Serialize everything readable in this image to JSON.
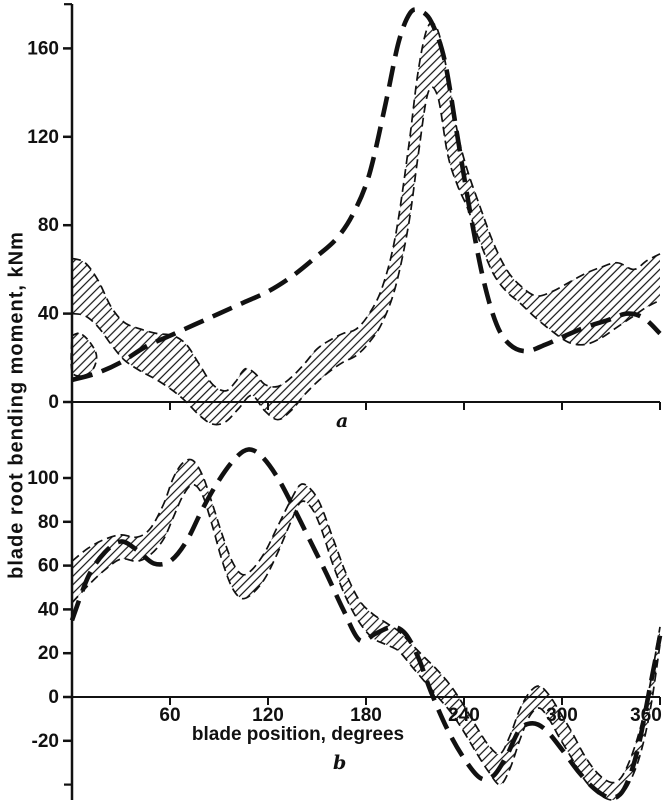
{
  "figure": {
    "background": "#ffffff",
    "ink": "#111111"
  },
  "chart_data": [
    {
      "id": "a",
      "type": "line",
      "panel_label": "a",
      "ylabel": "blade root bending moment, kNm",
      "xlim": [
        0,
        360
      ],
      "ylim": [
        -15,
        185
      ],
      "yticks": [
        0,
        40,
        80,
        120,
        160
      ],
      "yticks_minor": [
        180
      ],
      "xticks": [
        60,
        120,
        180,
        240,
        300,
        360
      ],
      "show_xtick_labels": false,
      "grid": false,
      "band": {
        "upper": "measured-envelope-upper",
        "lower": "measured-envelope-lower",
        "fill": "hatch"
      },
      "series": [
        {
          "name": "predicted-thick-dashed",
          "style": "thick-dashed",
          "x": [
            0,
            15,
            30,
            45,
            60,
            75,
            90,
            105,
            120,
            135,
            150,
            162,
            172,
            182,
            192,
            200,
            207,
            213,
            220,
            228,
            236,
            244,
            252,
            260,
            268,
            278,
            290,
            302,
            315,
            328,
            340,
            350,
            360
          ],
          "y": [
            10,
            13,
            18,
            25,
            30,
            35,
            40,
            45,
            50,
            57,
            66,
            74,
            85,
            103,
            135,
            163,
            176,
            177,
            172,
            155,
            120,
            85,
            55,
            35,
            26,
            23,
            26,
            30,
            34,
            37,
            40,
            38,
            31
          ]
        },
        {
          "name": "measured-envelope-upper",
          "style": "thin-dashed",
          "x": [
            0,
            8,
            16,
            24,
            32,
            42,
            52,
            62,
            70,
            78,
            86,
            94,
            100,
            106,
            112,
            118,
            126,
            134,
            142,
            150,
            158,
            166,
            174,
            182,
            190,
            198,
            206,
            212,
            218,
            224,
            230,
            236,
            242,
            250,
            258,
            266,
            274,
            284,
            294,
            304,
            314,
            324,
            334,
            344,
            352,
            360
          ],
          "y": [
            65,
            63,
            55,
            43,
            36,
            33,
            31,
            30,
            26,
            17,
            8,
            5,
            9,
            15,
            13,
            8,
            7,
            11,
            17,
            24,
            28,
            31,
            33,
            40,
            52,
            75,
            115,
            150,
            170,
            168,
            148,
            122,
            105,
            88,
            72,
            60,
            53,
            48,
            50,
            54,
            58,
            61,
            63,
            60,
            64,
            67
          ]
        },
        {
          "name": "measured-envelope-lower",
          "style": "thin-dashed",
          "x": [
            0,
            8,
            16,
            24,
            32,
            42,
            52,
            62,
            70,
            78,
            86,
            94,
            102,
            110,
            118,
            126,
            134,
            142,
            150,
            158,
            166,
            174,
            182,
            190,
            198,
            206,
            212,
            218,
            224,
            230,
            236,
            242,
            250,
            258,
            266,
            274,
            284,
            294,
            304,
            314,
            324,
            334,
            344,
            352,
            360
          ],
          "y": [
            40,
            39,
            34,
            26,
            19,
            14,
            10,
            5,
            0,
            -6,
            -10,
            -9,
            -3,
            3,
            -4,
            -8,
            -4,
            3,
            9,
            14,
            18,
            21,
            27,
            36,
            52,
            80,
            112,
            140,
            138,
            112,
            98,
            88,
            72,
            58,
            50,
            45,
            38,
            32,
            27,
            26,
            29,
            34,
            39,
            43,
            46
          ]
        }
      ],
      "extra_regions": [
        {
          "name": "small-left-lobe",
          "x": [
            0,
            5,
            11,
            15,
            13,
            7,
            0
          ],
          "y": [
            30,
            31,
            27,
            21,
            15,
            12,
            14
          ]
        }
      ]
    },
    {
      "id": "b",
      "type": "line",
      "panel_label": "b",
      "xlabel": "blade position, degrees",
      "xlim": [
        0,
        360
      ],
      "ylim": [
        -50,
        115
      ],
      "yticks": [
        -20,
        0,
        20,
        40,
        60,
        80,
        100
      ],
      "yticks_minor": [
        -40
      ],
      "xticks": [
        60,
        120,
        180,
        240,
        300,
        360
      ],
      "show_xtick_labels": true,
      "grid": false,
      "band": {
        "upper": "measured-envelope-upper",
        "lower": "measured-envelope-lower",
        "fill": "hatch"
      },
      "series": [
        {
          "name": "predicted-thick-dashed",
          "style": "thick-dashed",
          "x": [
            0,
            10,
            20,
            30,
            40,
            50,
            60,
            70,
            80,
            90,
            100,
            108,
            116,
            126,
            136,
            146,
            156,
            166,
            176,
            186,
            196,
            204,
            212,
            220,
            230,
            240,
            250,
            258,
            266,
            274,
            282,
            290,
            300,
            310,
            320,
            330,
            338,
            346,
            354,
            360
          ],
          "y": [
            35,
            55,
            66,
            71,
            67,
            61,
            62,
            71,
            86,
            99,
            109,
            113,
            110,
            100,
            86,
            71,
            56,
            40,
            26,
            29,
            32,
            29,
            18,
            2,
            -15,
            -28,
            -37,
            -36,
            -27,
            -15,
            -12,
            -15,
            -24,
            -34,
            -42,
            -46,
            -42,
            -25,
            5,
            28
          ]
        },
        {
          "name": "measured-envelope-upper",
          "style": "thin-dashed",
          "x": [
            0,
            10,
            20,
            30,
            40,
            48,
            56,
            62,
            68,
            74,
            80,
            86,
            92,
            98,
            104,
            110,
            118,
            126,
            134,
            140,
            146,
            152,
            160,
            168,
            176,
            184,
            192,
            200,
            208,
            216,
            224,
            232,
            240,
            248,
            255,
            262,
            268,
            274,
            280,
            286,
            292,
            298,
            306,
            314,
            322,
            330,
            336,
            342,
            348,
            354,
            360
          ],
          "y": [
            62,
            68,
            72,
            74,
            73,
            77,
            88,
            100,
            107,
            108,
            101,
            88,
            74,
            62,
            56,
            58,
            66,
            78,
            90,
            97,
            95,
            88,
            72,
            56,
            44,
            38,
            34,
            30,
            24,
            18,
            12,
            5,
            -4,
            -14,
            -22,
            -26,
            -18,
            -6,
            2,
            5,
            1,
            -6,
            -16,
            -27,
            -35,
            -39,
            -37,
            -28,
            -14,
            6,
            32
          ]
        },
        {
          "name": "measured-envelope-lower",
          "style": "thin-dashed",
          "x": [
            0,
            10,
            20,
            30,
            40,
            48,
            56,
            62,
            68,
            74,
            80,
            86,
            92,
            98,
            104,
            110,
            118,
            126,
            134,
            140,
            146,
            152,
            160,
            168,
            176,
            184,
            192,
            200,
            208,
            216,
            224,
            232,
            240,
            248,
            255,
            262,
            268,
            274,
            280,
            286,
            292,
            298,
            306,
            314,
            322,
            330,
            336,
            342,
            348,
            354,
            360
          ],
          "y": [
            43,
            51,
            58,
            63,
            62,
            65,
            72,
            82,
            92,
            97,
            92,
            78,
            62,
            50,
            45,
            47,
            54,
            66,
            80,
            89,
            87,
            78,
            60,
            45,
            34,
            27,
            24,
            21,
            14,
            7,
            0,
            -7,
            -16,
            -26,
            -34,
            -40,
            -33,
            -20,
            -9,
            -5,
            -10,
            -18,
            -28,
            -38,
            -44,
            -47,
            -45,
            -38,
            -26,
            -6,
            24
          ]
        }
      ],
      "extra_regions": []
    }
  ]
}
